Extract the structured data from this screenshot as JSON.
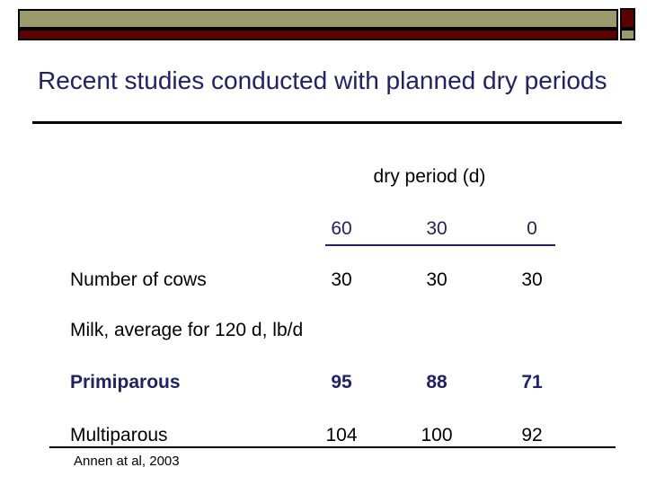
{
  "slide": {
    "title": "Recent studies conducted with planned dry periods",
    "citation": "Annen at al, 2003"
  },
  "colors": {
    "navy_text": "#212169",
    "banner_khaki": "#9A9A6A",
    "banner_dark_red": "#5E0000",
    "rule_black": "#000000"
  },
  "chart_data": {
    "type": "table",
    "title": "Recent studies conducted with planned dry periods",
    "column_group_label": "dry period (d)",
    "columns": [
      "60",
      "30",
      "0"
    ],
    "rows": [
      {
        "label": "Number of cows",
        "values": [
          "30",
          "30",
          "30"
        ]
      },
      {
        "label": "Milk, average for 120 d, lb/d",
        "values": [
          "",
          "",
          ""
        ]
      },
      {
        "label": "Primiparous",
        "values": [
          "95",
          "88",
          "71"
        ]
      },
      {
        "label": "Multiparous",
        "values": [
          "104",
          "100",
          "92"
        ]
      }
    ],
    "source": "Annen at al, 2003"
  }
}
